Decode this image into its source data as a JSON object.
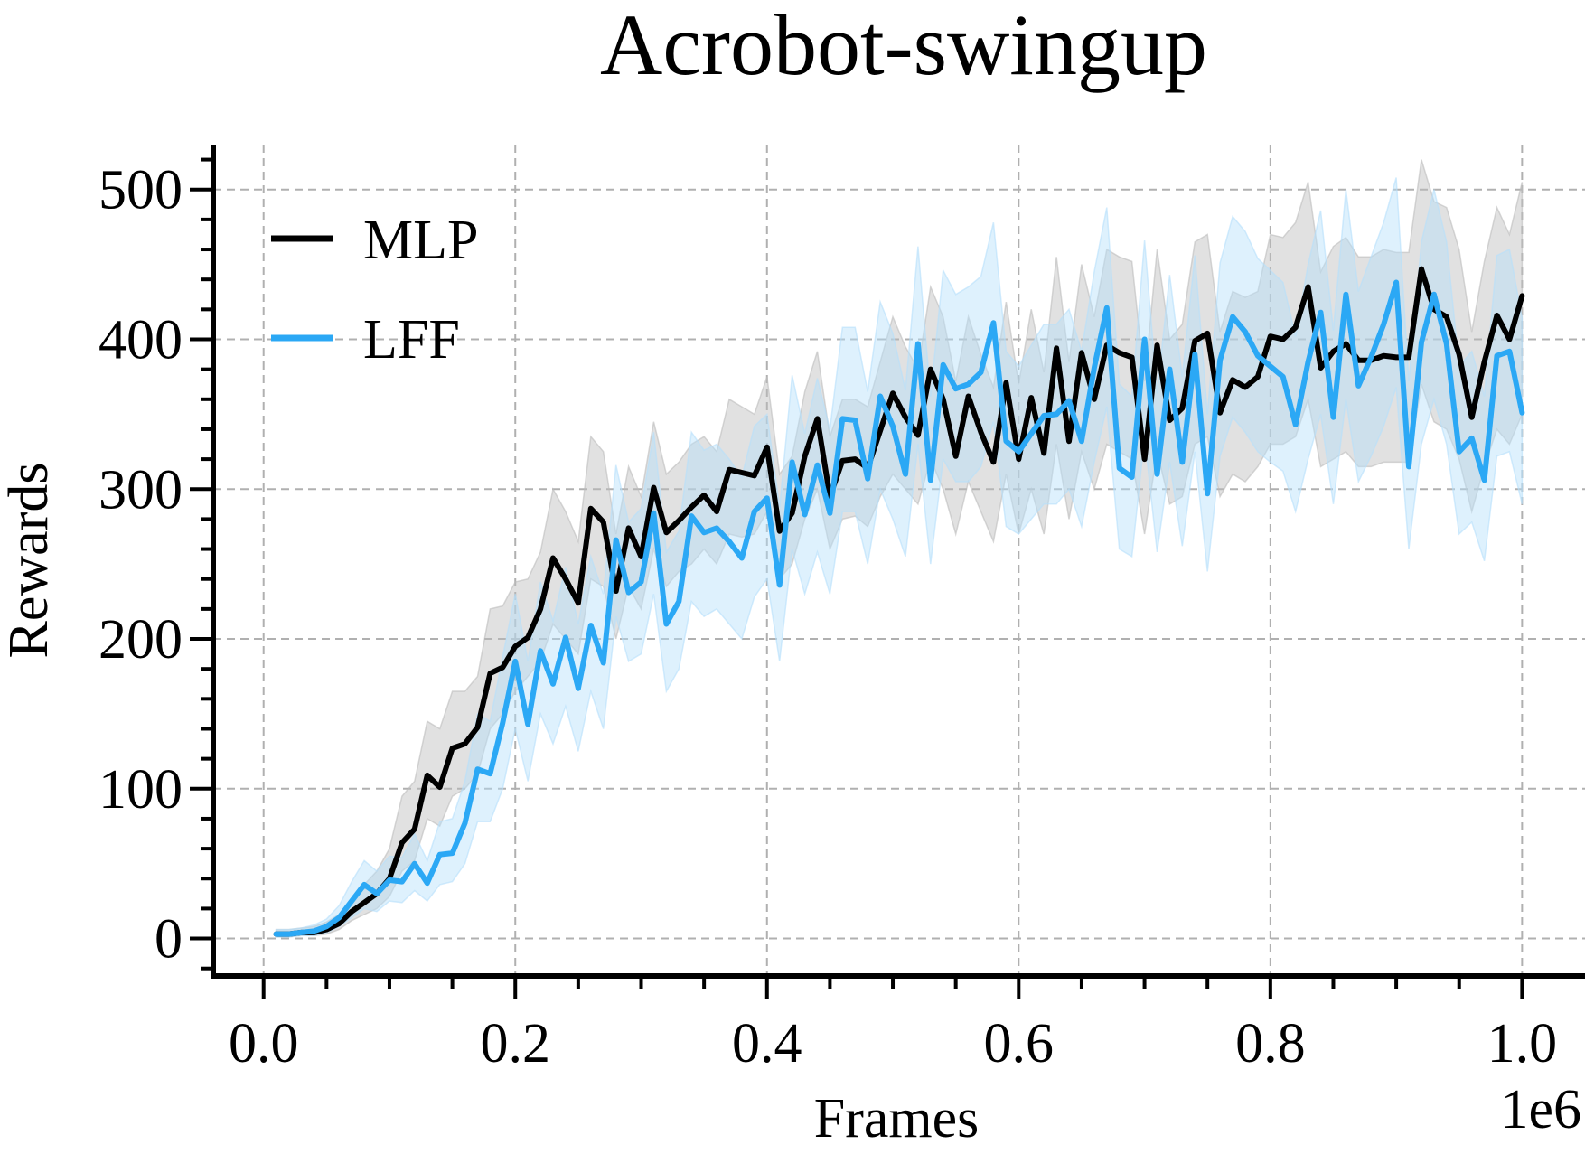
{
  "chart_data": {
    "type": "line",
    "title": "Acrobot-swingup",
    "xlabel": "Frames",
    "ylabel": "Rewards",
    "x_offset_label": "1e6",
    "xlim": [
      -0.04,
      1.05
    ],
    "ylim": [
      -25,
      530
    ],
    "xticks": [
      0.0,
      0.2,
      0.4,
      0.6,
      0.8,
      1.0
    ],
    "xtick_labels": [
      "0.0",
      "0.2",
      "0.4",
      "0.6",
      "0.8",
      "1.0"
    ],
    "yticks": [
      0,
      100,
      200,
      300,
      400,
      500
    ],
    "ytick_labels": [
      "0",
      "100",
      "200",
      "300",
      "400",
      "500"
    ],
    "grid": true,
    "legend_position": "top-left",
    "x": [
      0.01,
      0.02,
      0.03,
      0.04,
      0.05,
      0.06,
      0.07,
      0.08,
      0.09,
      0.1,
      0.11,
      0.12,
      0.13,
      0.14,
      0.15,
      0.16,
      0.17,
      0.18,
      0.19,
      0.2,
      0.21,
      0.22,
      0.23,
      0.24,
      0.25,
      0.26,
      0.27,
      0.28,
      0.29,
      0.3,
      0.31,
      0.32,
      0.33,
      0.34,
      0.35,
      0.36,
      0.37,
      0.38,
      0.39,
      0.4,
      0.41,
      0.42,
      0.43,
      0.44,
      0.45,
      0.46,
      0.47,
      0.48,
      0.49,
      0.5,
      0.51,
      0.52,
      0.53,
      0.54,
      0.55,
      0.56,
      0.57,
      0.58,
      0.59,
      0.6,
      0.61,
      0.62,
      0.63,
      0.64,
      0.65,
      0.66,
      0.67,
      0.68,
      0.69,
      0.7,
      0.71,
      0.72,
      0.73,
      0.74,
      0.75,
      0.76,
      0.77,
      0.78,
      0.79,
      0.8,
      0.81,
      0.82,
      0.83,
      0.84,
      0.85,
      0.86,
      0.87,
      0.88,
      0.89,
      0.9,
      0.91,
      0.92,
      0.93,
      0.94,
      0.95,
      0.96,
      0.97,
      0.98,
      0.99,
      1.0
    ],
    "series": [
      {
        "name": "MLP",
        "color": "#000000",
        "band_color": "#bdbdbd",
        "values": [
          3,
          3,
          4,
          4,
          6,
          10,
          18,
          24,
          30,
          40,
          64,
          73,
          109,
          101,
          127,
          130,
          141,
          177,
          181,
          195,
          201,
          220,
          254,
          240,
          224,
          287,
          278,
          232,
          274,
          255,
          301,
          271,
          279,
          288,
          296,
          285,
          313,
          311,
          309,
          328,
          272,
          284,
          322,
          347,
          295,
          319,
          320,
          314,
          339,
          364,
          348,
          336,
          380,
          360,
          322,
          362,
          338,
          318,
          371,
          320,
          361,
          324,
          394,
          332,
          391,
          360,
          396,
          391,
          388,
          320,
          396,
          346,
          354,
          399,
          404,
          351,
          373,
          368,
          375,
          402,
          400,
          408,
          435,
          381,
          392,
          397,
          386,
          386,
          389,
          388,
          388,
          447,
          420,
          415,
          390,
          348,
          385,
          416,
          400,
          429
        ],
        "lower": [
          1,
          1,
          2,
          2,
          3,
          6,
          12,
          16,
          20,
          28,
          45,
          52,
          80,
          75,
          95,
          100,
          110,
          140,
          150,
          165,
          175,
          185,
          210,
          200,
          190,
          240,
          235,
          200,
          235,
          220,
          260,
          235,
          245,
          250,
          260,
          250,
          270,
          268,
          270,
          285,
          240,
          250,
          280,
          300,
          260,
          280,
          282,
          275,
          295,
          310,
          300,
          290,
          320,
          300,
          270,
          305,
          285,
          265,
          310,
          270,
          300,
          270,
          330,
          280,
          325,
          300,
          330,
          325,
          320,
          270,
          325,
          290,
          295,
          330,
          335,
          295,
          310,
          305,
          315,
          330,
          330,
          335,
          360,
          315,
          320,
          325,
          315,
          315,
          318,
          318,
          318,
          370,
          345,
          340,
          320,
          285,
          315,
          340,
          330,
          350
        ],
        "upper": [
          6,
          6,
          7,
          8,
          11,
          16,
          26,
          36,
          45,
          60,
          95,
          105,
          145,
          140,
          165,
          165,
          175,
          220,
          222,
          238,
          240,
          258,
          300,
          285,
          265,
          335,
          325,
          270,
          315,
          295,
          345,
          310,
          318,
          330,
          335,
          325,
          360,
          355,
          350,
          375,
          310,
          322,
          365,
          392,
          335,
          360,
          360,
          355,
          385,
          415,
          395,
          380,
          435,
          415,
          372,
          415,
          390,
          368,
          425,
          370,
          420,
          378,
          455,
          385,
          450,
          415,
          460,
          455,
          452,
          372,
          460,
          400,
          410,
          465,
          470,
          405,
          432,
          428,
          432,
          470,
          468,
          478,
          505,
          445,
          462,
          468,
          455,
          455,
          460,
          458,
          458,
          520,
          492,
          488,
          460,
          405,
          452,
          488,
          470,
          505
        ]
      },
      {
        "name": "LFF",
        "color": "#2ba8f5",
        "band_color": "#b5e0fb",
        "values": [
          3,
          3,
          4,
          5,
          8,
          14,
          25,
          36,
          30,
          39,
          38,
          50,
          37,
          56,
          57,
          77,
          113,
          110,
          144,
          185,
          143,
          192,
          170,
          201,
          167,
          209,
          184,
          266,
          231,
          238,
          284,
          210,
          225,
          282,
          271,
          274,
          265,
          254,
          285,
          294,
          236,
          318,
          283,
          316,
          284,
          347,
          346,
          307,
          362,
          342,
          310,
          397,
          306,
          383,
          367,
          370,
          378,
          411,
          332,
          325,
          337,
          349,
          350,
          359,
          332,
          381,
          421,
          314,
          308,
          400,
          310,
          380,
          318,
          390,
          297,
          386,
          415,
          405,
          389,
          382,
          375,
          343,
          385,
          418,
          348,
          430,
          369,
          388,
          410,
          438,
          315,
          398,
          430,
          397,
          325,
          334,
          306,
          389,
          392,
          351
        ],
        "lower": [
          1,
          1,
          2,
          2,
          4,
          8,
          14,
          20,
          18,
          25,
          24,
          32,
          25,
          36,
          38,
          50,
          78,
          78,
          100,
          140,
          105,
          150,
          130,
          155,
          125,
          165,
          140,
          215,
          185,
          190,
          230,
          165,
          180,
          225,
          215,
          220,
          210,
          200,
          228,
          240,
          185,
          260,
          230,
          258,
          230,
          285,
          285,
          250,
          300,
          280,
          255,
          330,
          250,
          320,
          305,
          305,
          315,
          345,
          275,
          270,
          280,
          290,
          290,
          300,
          275,
          318,
          355,
          260,
          255,
          335,
          258,
          318,
          262,
          325,
          245,
          322,
          348,
          338,
          325,
          318,
          312,
          285,
          320,
          350,
          290,
          360,
          305,
          322,
          342,
          368,
          260,
          330,
          360,
          330,
          270,
          278,
          252,
          322,
          325,
          290
        ],
        "upper": [
          6,
          6,
          7,
          9,
          13,
          22,
          38,
          52,
          45,
          55,
          54,
          70,
          52,
          78,
          80,
          105,
          150,
          145,
          188,
          230,
          185,
          238,
          212,
          248,
          210,
          255,
          230,
          316,
          278,
          287,
          338,
          258,
          272,
          338,
          326,
          330,
          320,
          308,
          342,
          350,
          288,
          376,
          337,
          374,
          340,
          408,
          408,
          365,
          425,
          404,
          366,
          462,
          362,
          446,
          430,
          435,
          442,
          478,
          392,
          382,
          396,
          410,
          410,
          420,
          392,
          445,
          488,
          370,
          362,
          466,
          364,
          443,
          375,
          456,
          350,
          451,
          482,
          472,
          454,
          446,
          438,
          402,
          450,
          486,
          406,
          500,
          432,
          455,
          478,
          508,
          372,
          465,
          500,
          465,
          382,
          392,
          362,
          456,
          460,
          414
        ]
      }
    ]
  }
}
